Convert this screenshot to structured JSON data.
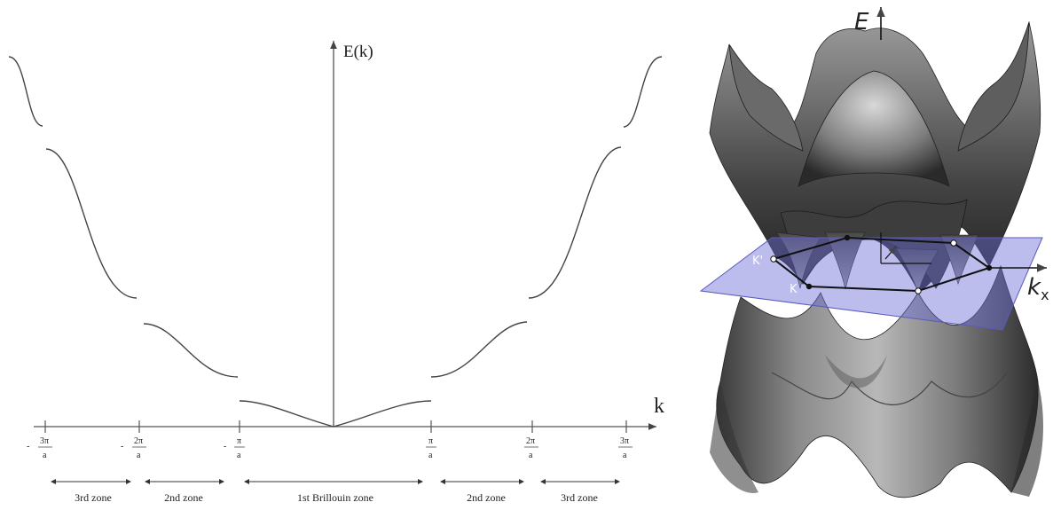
{
  "left_diagram": {
    "y_axis_label": "E(k)",
    "x_axis_label": "k",
    "ticks": [
      {
        "sign": "-",
        "num": "3π",
        "den": "a"
      },
      {
        "sign": "-",
        "num": "2π",
        "den": "a"
      },
      {
        "sign": "-",
        "num": "π",
        "den": "a"
      },
      {
        "sign": "",
        "num": "π",
        "den": "a"
      },
      {
        "sign": "",
        "num": "2π",
        "den": "a"
      },
      {
        "sign": "",
        "num": "3π",
        "den": "a"
      }
    ],
    "zones": [
      "3rd zone",
      "2nd zone",
      "1st Brillouin zone",
      "2nd zone",
      "3rd zone"
    ]
  },
  "right_diagram": {
    "energy_label": "E",
    "kx_label": "k",
    "kx_subscript": "x",
    "point_k": "K",
    "point_k_prime": "K'"
  },
  "colors": {
    "surface": "#6f6f6f",
    "surface_dark": "#2f2f2f",
    "plane": "#6a6ad6"
  }
}
